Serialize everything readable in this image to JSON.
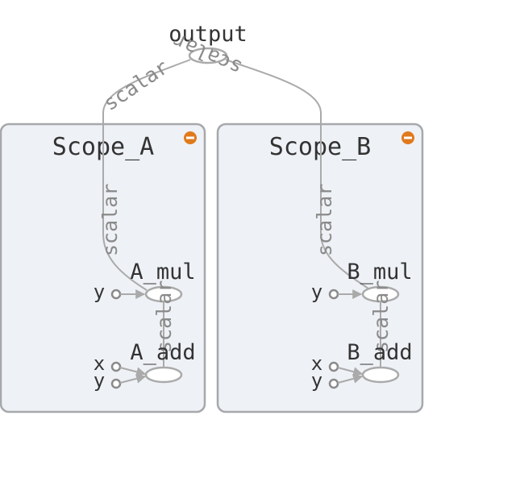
{
  "graph": {
    "output": {
      "label": "output",
      "edges": [
        "scalar",
        "scalar"
      ]
    },
    "scopes": [
      {
        "id": "A",
        "label": "Scope_A",
        "collapse_icon": "minus-circle-icon",
        "edge_to_output": "scalar",
        "mul": {
          "label": "A_mul",
          "inputs": [
            "y"
          ]
        },
        "add": {
          "label": "A_add",
          "inputs": [
            "x",
            "y"
          ]
        },
        "edge_add_to_mul": "scalar"
      },
      {
        "id": "B",
        "label": "Scope_B",
        "collapse_icon": "minus-circle-icon",
        "edge_to_output": "scalar",
        "mul": {
          "label": "B_mul",
          "inputs": [
            "y"
          ]
        },
        "add": {
          "label": "B_add",
          "inputs": [
            "x",
            "y"
          ]
        },
        "edge_add_to_mul": "scalar"
      }
    ]
  },
  "colors": {
    "scope_fill": "#eef1f5",
    "scope_stroke": "#a6a8ab",
    "edge": "#aaaaaa",
    "collapse_icon": "#e07a1c"
  }
}
